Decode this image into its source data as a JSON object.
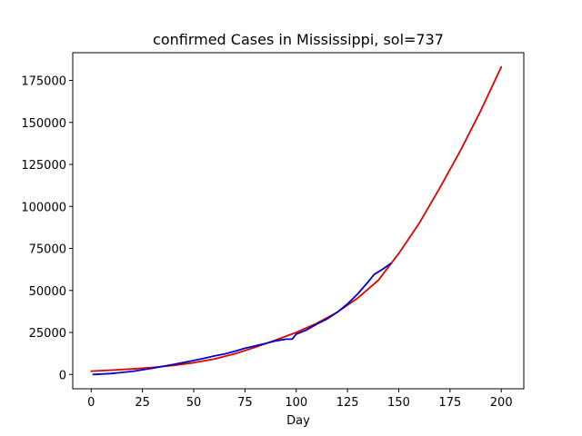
{
  "chart_data": {
    "type": "line",
    "title": "confirmed Cases in Mississippi, sol=737",
    "xlabel": "Day",
    "ylabel": "",
    "xlim": [
      -9,
      211
    ],
    "ylim": [
      -8500,
      191500
    ],
    "xticks": [
      0,
      25,
      50,
      75,
      100,
      125,
      150,
      175,
      200
    ],
    "yticks": [
      0,
      25000,
      50000,
      75000,
      100000,
      125000,
      150000,
      175000
    ],
    "grid": false,
    "legend": "none",
    "series": [
      {
        "color": "#dd0000",
        "x": [
          0,
          10,
          20,
          30,
          40,
          50,
          60,
          70,
          80,
          90,
          100,
          110,
          120,
          130,
          140,
          150,
          160,
          170,
          180,
          190,
          200
        ],
        "y": [
          2000,
          2600,
          3300,
          4200,
          5400,
          7000,
          9200,
          12300,
          16200,
          20500,
          25000,
          30500,
          37000,
          45500,
          56000,
          72000,
          90000,
          111000,
          133000,
          157000,
          183000
        ]
      },
      {
        "color": "#0000cc",
        "x": [
          1,
          10,
          20,
          30,
          40,
          50,
          55,
          60,
          65,
          70,
          75,
          80,
          85,
          90,
          95,
          98,
          100,
          105,
          110,
          115,
          120,
          125,
          130,
          135,
          138,
          142,
          146
        ],
        "y": [
          0,
          600,
          1800,
          3700,
          6000,
          8300,
          9600,
          11000,
          12200,
          13800,
          15600,
          17000,
          18500,
          20000,
          21000,
          21000,
          24000,
          26500,
          30000,
          33000,
          37000,
          42000,
          48000,
          55000,
          59500,
          62500,
          66000
        ]
      }
    ]
  }
}
